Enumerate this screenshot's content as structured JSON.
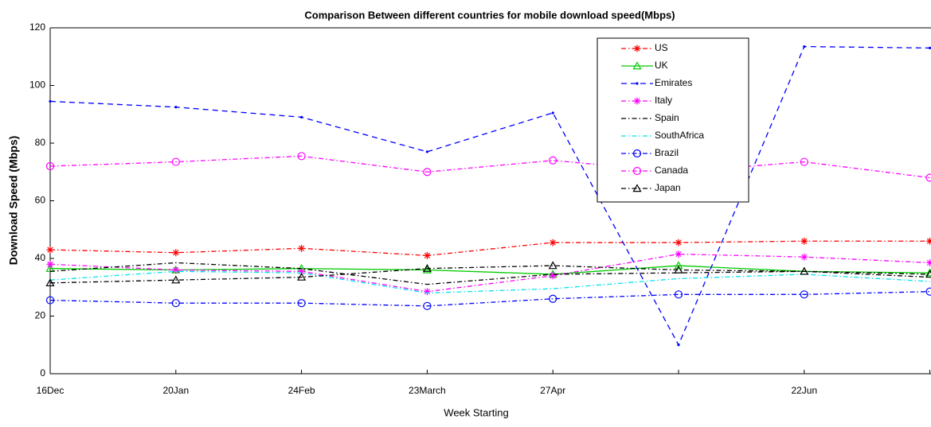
{
  "chart_data": {
    "type": "line",
    "title": "Comparison Between different countries for mobile download speed(Mbps)",
    "x_label": "Week Starting",
    "y_label": "Download Speed (Mbps)",
    "categories": [
      "16Dec",
      "20Jan",
      "24Feb",
      "23March",
      "27Apr",
      null,
      "22Jun",
      null
    ],
    "ylim": [
      0,
      120
    ],
    "yticks": [
      0,
      20,
      40,
      60,
      80,
      100,
      120
    ],
    "legend": "upper right",
    "series": [
      {
        "name": "US",
        "color": "#ff0000",
        "marker": "asterisk",
        "dash": "dash-dot",
        "values": [
          43,
          42,
          43.5,
          41,
          45.5,
          45.5,
          46,
          46
        ]
      },
      {
        "name": "UK",
        "color": "#00cc00",
        "marker": "triangle",
        "dash": "solid",
        "values": [
          36.5,
          36,
          36.5,
          36,
          34.5,
          37.5,
          35.5,
          35
        ]
      },
      {
        "name": "Emirates",
        "color": "#0000ff",
        "marker": "dot",
        "dash": "dashed",
        "values": [
          94.5,
          92.5,
          89,
          77,
          90.5,
          10,
          113.5,
          113
        ]
      },
      {
        "name": "Italy",
        "color": "#ff00ff",
        "marker": "asterisk",
        "dash": "dash-dot",
        "values": [
          38,
          36,
          35.5,
          28.5,
          34,
          41.5,
          40.5,
          38.5
        ]
      },
      {
        "name": "Spain",
        "color": "#000000",
        "marker": "none",
        "dash": "dash-dot",
        "values": [
          35.5,
          38.5,
          36.5,
          31,
          34.5,
          35,
          35.5,
          33.5
        ]
      },
      {
        "name": "SouthAfrica",
        "color": "#00e5ee",
        "marker": "none",
        "dash": "dash-dot",
        "values": [
          32.5,
          35.5,
          35,
          28,
          29.5,
          33,
          34.5,
          32
        ]
      },
      {
        "name": "Brazil",
        "color": "#0000ff",
        "marker": "circle",
        "dash": "dash-dot",
        "values": [
          25.5,
          24.5,
          24.5,
          23.5,
          26,
          27.5,
          27.5,
          28.5
        ]
      },
      {
        "name": "Canada",
        "color": "#ff00ff",
        "marker": "circle",
        "dash": "dash-dot",
        "values": [
          72,
          73.5,
          75.5,
          70,
          74,
          70,
          73.5,
          68
        ]
      },
      {
        "name": "Japan",
        "color": "#000000",
        "marker": "triangle",
        "dash": "dash-dot",
        "values": [
          31.5,
          32.5,
          33.5,
          36.5,
          37.5,
          36,
          35.5,
          34.5
        ]
      }
    ]
  }
}
